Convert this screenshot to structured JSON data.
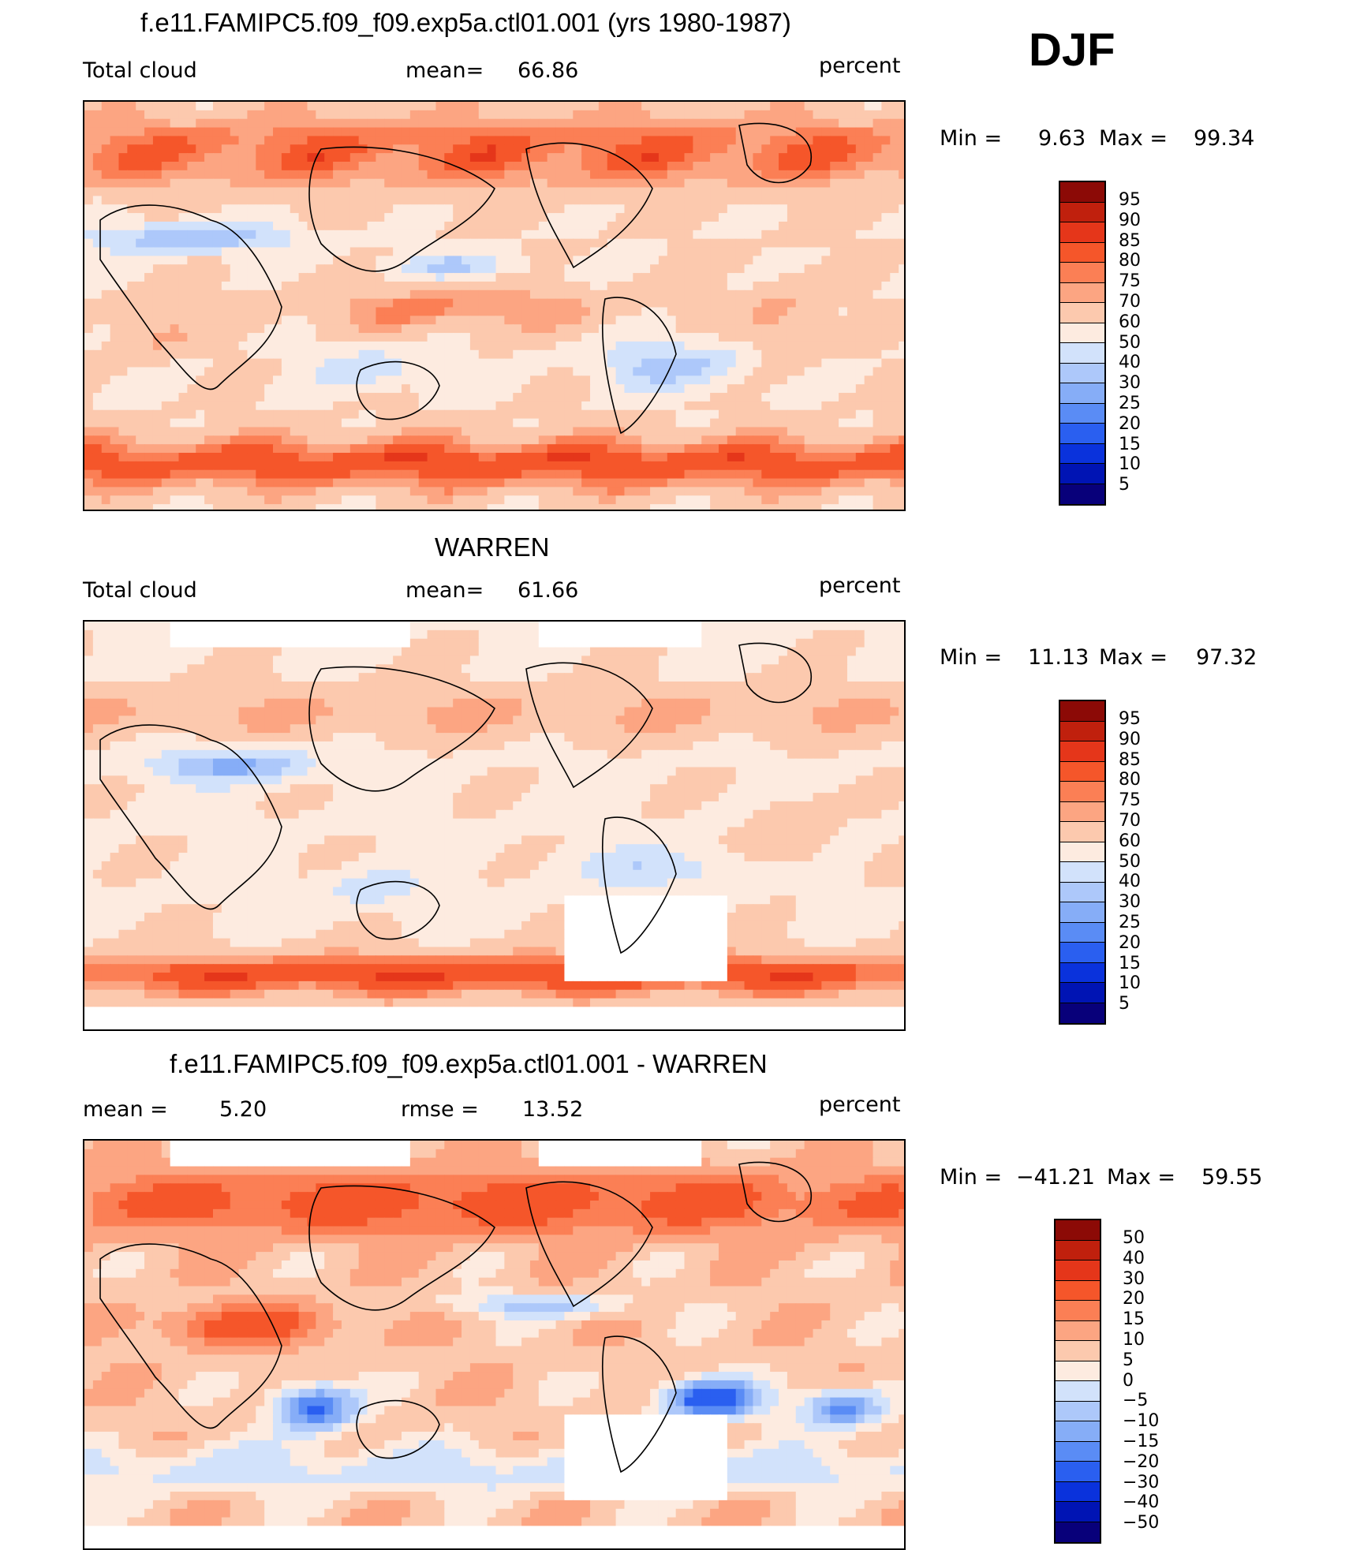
{
  "season": "DJF",
  "colors": {
    "levels": [
      "#08007a",
      "#0014b4",
      "#0a32dc",
      "#2a5ff0",
      "#5a8cf5",
      "#86adf7",
      "#adc8fa",
      "#d2e2fb",
      "#fdebe0",
      "#fcc9ae",
      "#fca582",
      "#fb7f55",
      "#f5562a",
      "#e5361a",
      "#c0200d",
      "#8c0a06"
    ],
    "land": "#000000"
  },
  "chart_data": [
    {
      "type": "heatmap",
      "title": "f.e11.FAMIPC5.f09_f09.exp5a.ctl01.001 (yrs 1980-1987)",
      "left_label": "Total cloud",
      "mean_label": "mean=",
      "mean_value": "66.86",
      "units": "percent",
      "min_label": "Min =",
      "min_value": "9.63",
      "max_label": "Max =",
      "max_value": "99.34",
      "colorbar_ticks": [
        "95",
        "90",
        "85",
        "80",
        "75",
        "70",
        "60",
        "50",
        "40",
        "30",
        "25",
        "20",
        "15",
        "10",
        "5"
      ]
    },
    {
      "type": "heatmap",
      "title": "WARREN",
      "left_label": "Total cloud",
      "mean_label": "mean=",
      "mean_value": "61.66",
      "units": "percent",
      "min_label": "Min =",
      "min_value": "11.13",
      "max_label": "Max =",
      "max_value": "97.32",
      "colorbar_ticks": [
        "95",
        "90",
        "85",
        "80",
        "75",
        "70",
        "60",
        "50",
        "40",
        "30",
        "25",
        "20",
        "15",
        "10",
        "5"
      ]
    },
    {
      "type": "heatmap",
      "title": "f.e11.FAMIPC5.f09_f09.exp5a.ctl01.001 - WARREN",
      "left_label": "mean =",
      "left_value": "5.20",
      "mid_label": "rmse =",
      "mid_value": "13.52",
      "units": "percent",
      "min_label": "Min =",
      "min_value": "−41.21",
      "max_label": "Max =",
      "max_value": "59.55",
      "colorbar_ticks": [
        "50",
        "40",
        "30",
        "20",
        "15",
        "10",
        "5",
        "0",
        "−5",
        "−10",
        "−15",
        "−20",
        "−30",
        "−40",
        "−50"
      ]
    }
  ]
}
